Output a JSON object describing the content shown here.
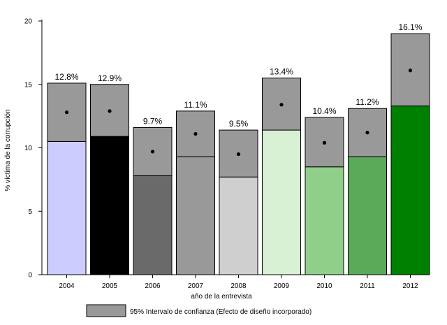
{
  "chart_data": {
    "type": "bar",
    "title": "",
    "xlabel": "año de la entrevista",
    "ylabel": "% víctima de la corrupción",
    "ylim": [
      0,
      20
    ],
    "yticks": [
      0,
      5,
      10,
      15,
      20
    ],
    "categories": [
      "2004",
      "2005",
      "2006",
      "2007",
      "2008",
      "2009",
      "2010",
      "2011",
      "2012"
    ],
    "values": [
      12.8,
      12.9,
      9.7,
      11.1,
      9.5,
      13.4,
      10.4,
      11.2,
      16.1
    ],
    "value_labels": [
      "12.8%",
      "12.9%",
      "9.7%",
      "11.1%",
      "9.5%",
      "13.4%",
      "10.4%",
      "11.2%",
      "16.1%"
    ],
    "ci_lower": [
      10.5,
      10.9,
      7.8,
      9.3,
      7.7,
      11.4,
      8.5,
      9.3,
      13.3
    ],
    "ci_upper": [
      15.1,
      15.0,
      11.6,
      12.9,
      11.4,
      15.5,
      12.4,
      13.1,
      19.0
    ],
    "bar_colors": [
      "#ccccff",
      "#000000",
      "#6a6a6a",
      "#999999",
      "#cfcfcf",
      "#d8f0d4",
      "#8fcf8a",
      "#5aaa5a",
      "#008000"
    ],
    "ci_color": "#999999",
    "legend": {
      "label": "95% Intervalo de confianza (Efecto de diseño incorporado)",
      "placement": "bottom"
    }
  }
}
